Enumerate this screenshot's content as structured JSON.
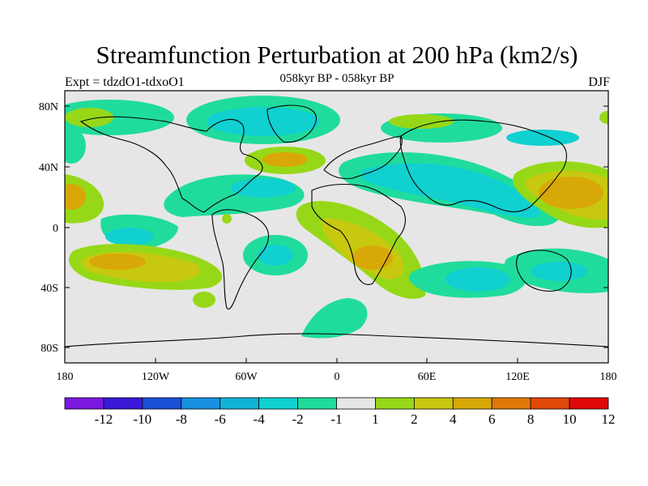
{
  "header": {
    "title": "Streamfunction Perturbation at 200 hPa (km2/s)",
    "expt": "Expt = tdzdO1-tdxoO1",
    "period": "058kyr BP - 058kyr BP",
    "season": "DJF"
  },
  "axes": {
    "y_ticks": [
      "80N",
      "40N",
      "0",
      "40S",
      "80S"
    ],
    "x_ticks": [
      "180",
      "120W",
      "60W",
      "0",
      "60E",
      "120E",
      "180"
    ]
  },
  "colorbar": {
    "labels": [
      "-12",
      "-10",
      "-8",
      "-6",
      "-4",
      "-2",
      "-1",
      "1",
      "2",
      "4",
      "6",
      "8",
      "10",
      "12"
    ],
    "colors": [
      "#7a18e0",
      "#3a18d8",
      "#1a50d8",
      "#1890e0",
      "#10b4d8",
      "#10d0d0",
      "#20dc9c",
      "#e6e6e6",
      "#96d818",
      "#c8c810",
      "#d8a808",
      "#e07808",
      "#e04808",
      "#e00808"
    ]
  },
  "map": {
    "background_color": "#e6e6e6",
    "projection": "cylindrical-equidistant",
    "lon_range": [
      -180,
      180
    ],
    "lat_range": [
      -90,
      90
    ]
  }
}
